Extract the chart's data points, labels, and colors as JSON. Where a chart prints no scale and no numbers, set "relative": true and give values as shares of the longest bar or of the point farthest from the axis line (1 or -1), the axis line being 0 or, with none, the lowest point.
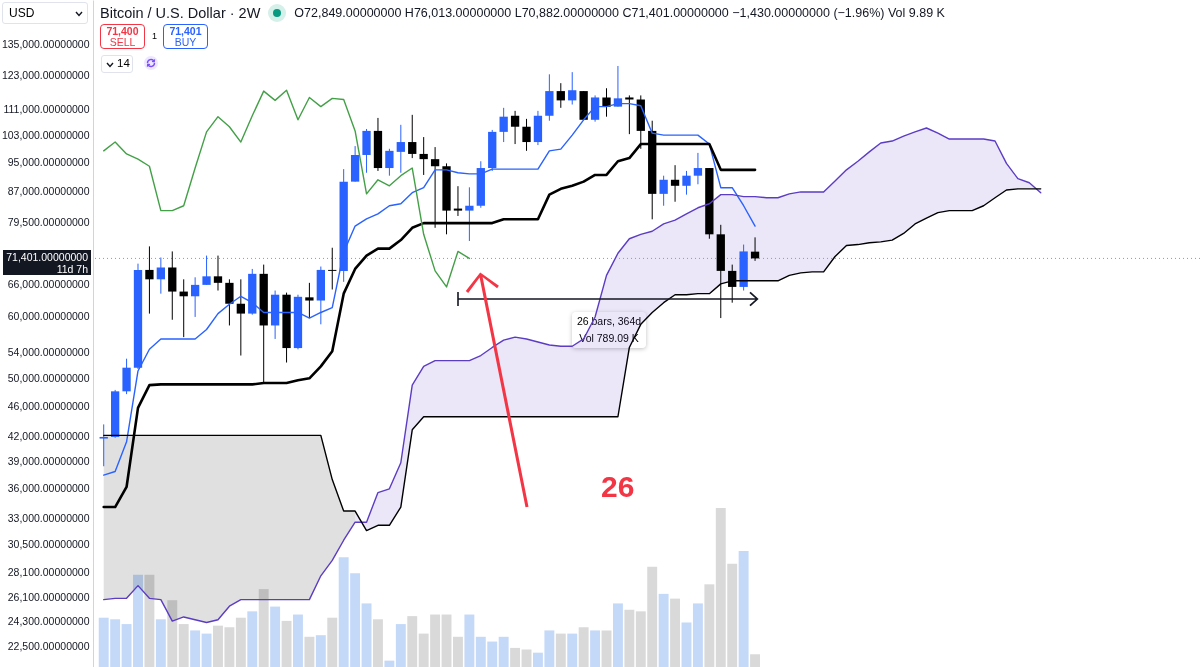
{
  "chart_data": [
    {
      "type": "candlestick",
      "title": "Bitcoin / U.S. Dollar · 2W",
      "subtitle": "O72,849.00000000 H76,013.00000000 L70,882.00000000 C71,401.00000000 −1,430.00000000 (−1.96%) Vol 9.89 K",
      "annotations": [
        "USD",
        "71,400",
        "SELL",
        "1",
        "71,401",
        "BUY",
        "14",
        "11d 7h",
        "26 bars, 364d",
        "Vol 789.09 K",
        "26"
      ],
      "categories": [
        null,
        null,
        null,
        null,
        null,
        null,
        null,
        null,
        null,
        null,
        null,
        null,
        null,
        null,
        null,
        null,
        null,
        null,
        null,
        null,
        null,
        null,
        null,
        null,
        null,
        null,
        null,
        null,
        null,
        null,
        null,
        null,
        null,
        null,
        null,
        null,
        null,
        null,
        null,
        null,
        null,
        null,
        null,
        null,
        null,
        null,
        null,
        null,
        null,
        null,
        null,
        null,
        null,
        null,
        null,
        null,
        null,
        null,
        null,
        null,
        null,
        null,
        null,
        null,
        null,
        null,
        null,
        null,
        null,
        null,
        null,
        null,
        null,
        null,
        null,
        null,
        null,
        null,
        null,
        null,
        null,
        null,
        null,
        null,
        null,
        null,
        null,
        null,
        null,
        null,
        null,
        null,
        null,
        null,
        null,
        null
      ],
      "ohlc": [
        [
          41800,
          43600,
          38500,
          42000
        ],
        [
          42000,
          48300,
          41900,
          48100
        ],
        [
          48100,
          53000,
          47700,
          51600
        ],
        [
          51600,
          70300,
          51400,
          69000
        ],
        [
          69000,
          74000,
          60600,
          67100
        ],
        [
          67100,
          71600,
          64300,
          69500
        ],
        [
          69500,
          72900,
          59500,
          64700
        ],
        [
          64700,
          67100,
          56500,
          63800
        ],
        [
          63800,
          67500,
          60000,
          66000
        ],
        [
          66000,
          72000,
          66000,
          67700
        ],
        [
          67700,
          72000,
          64900,
          66400
        ],
        [
          66400,
          67100,
          58500,
          62400
        ],
        [
          62400,
          67100,
          53500,
          60600
        ],
        [
          60600,
          69200,
          60400,
          68200
        ],
        [
          68200,
          70100,
          49300,
          58500
        ],
        [
          58500,
          64900,
          56200,
          64100
        ],
        [
          64100,
          64500,
          52400,
          54700
        ],
        [
          54700,
          64100,
          54500,
          63700
        ],
        [
          63600,
          66400,
          59800,
          63000
        ],
        [
          63000,
          69700,
          58700,
          69000
        ],
        [
          69000,
          73700,
          65100,
          68800
        ],
        [
          68800,
          93100,
          66600,
          89700
        ],
        [
          89700,
          99700,
          89700,
          97100
        ],
        [
          97100,
          104900,
          92100,
          104300
        ],
        [
          104300,
          108400,
          92600,
          93400
        ],
        [
          93400,
          98900,
          91300,
          98300
        ],
        [
          98000,
          106200,
          92100,
          100900
        ],
        [
          100900,
          109400,
          96200,
          97400
        ],
        [
          97400,
          102400,
          91500,
          95900
        ],
        [
          95900,
          99400,
          78200,
          93900
        ],
        [
          93900,
          94700,
          76700,
          82300
        ],
        [
          82800,
          88500,
          81000,
          82300
        ],
        [
          82300,
          88200,
          75200,
          83500
        ],
        [
          83500,
          95300,
          83000,
          93400
        ],
        [
          93400,
          104600,
          92600,
          104000
        ],
        [
          104000,
          111700,
          100900,
          108800
        ],
        [
          109100,
          110700,
          100300,
          105600
        ],
        [
          105600,
          108100,
          98300,
          100900
        ],
        [
          100900,
          110700,
          100000,
          109100
        ],
        [
          109100,
          123400,
          107500,
          117400
        ],
        [
          117400,
          120200,
          111700,
          114200
        ],
        [
          114200,
          124200,
          112800,
          117700
        ],
        [
          117400,
          117400,
          107800,
          107800
        ],
        [
          107800,
          115900,
          107200,
          115200
        ],
        [
          115200,
          118400,
          108800,
          112100
        ],
        [
          112100,
          126500,
          112100,
          114900
        ],
        [
          115200,
          115900,
          103300,
          114500
        ],
        [
          114500,
          115900,
          98900,
          104300
        ],
        [
          104300,
          107500,
          80200,
          86500
        ],
        [
          86500,
          91300,
          83500,
          90200
        ],
        [
          90200,
          94200,
          84500,
          88600
        ],
        [
          88600,
          92600,
          86300,
          91300
        ],
        [
          91300,
          97700,
          89000,
          93400
        ],
        [
          93400,
          93400,
          75700,
          76700
        ],
        [
          76700,
          78900,
          59800,
          68800
        ],
        [
          68800,
          70100,
          62600,
          65600
        ],
        [
          65600,
          74400,
          64900,
          72900
        ],
        [
          72849,
          76013,
          70882,
          71401
        ],
        null,
        null,
        null,
        null,
        null,
        null,
        null,
        null,
        null,
        null,
        null,
        null,
        null,
        null,
        null,
        null,
        null,
        null,
        null,
        null,
        null,
        null,
        null,
        null,
        null,
        null,
        null,
        null,
        null,
        null,
        null,
        null,
        null,
        null,
        null,
        null,
        null,
        null
      ],
      "colors": [
        "#2962ff",
        "#2962ff",
        "#2962ff",
        "#2962ff",
        "#000000",
        "#2962ff",
        "#000000",
        "#000000",
        "#2962ff",
        "#2962ff",
        "#000000",
        "#000000",
        "#000000",
        "#2962ff",
        "#000000",
        "#2962ff",
        "#000000",
        "#2962ff",
        "#000000",
        "#2962ff",
        "#000000",
        "#2962ff",
        "#2962ff",
        "#2962ff",
        "#000000",
        "#2962ff",
        "#2962ff",
        "#000000",
        "#000000",
        "#000000",
        "#000000",
        "#000000",
        "#2962ff",
        "#2962ff",
        "#2962ff",
        "#2962ff",
        "#000000",
        "#000000",
        "#2962ff",
        "#2962ff",
        "#000000",
        "#2962ff",
        "#000000",
        "#2962ff",
        "#000000",
        "#2962ff",
        "#000000",
        "#000000",
        "#000000",
        "#2962ff",
        "#000000",
        "#2962ff",
        "#2962ff",
        "#000000",
        "#000000",
        "#000000",
        "#2962ff",
        "#000000",
        null,
        null,
        null,
        null,
        null,
        null,
        null,
        null,
        null,
        null,
        null,
        null,
        null,
        null,
        null,
        null,
        null,
        null,
        null,
        null,
        null,
        null,
        null,
        null,
        null,
        null,
        null,
        null,
        null,
        null,
        null,
        null,
        null,
        null,
        null,
        null,
        null,
        null
      ],
      "series": [
        {
          "type": "line",
          "color": "#2962ff",
          "values": [
            37500,
            37900,
            41400,
            51100,
            54500,
            56200,
            56200,
            56200,
            56200,
            57800,
            60600,
            62300,
            63800,
            62600,
            60800,
            60800,
            60800,
            60800,
            59800,
            60800,
            61700,
            72700,
            78600,
            80300,
            81500,
            83500,
            84000,
            86800,
            88100,
            92900,
            92900,
            92100,
            91800,
            91800,
            93100,
            93100,
            93100,
            93100,
            93100,
            98300,
            98800,
            103000,
            107800,
            112100,
            112100,
            113100,
            113100,
            112400,
            103600,
            103000,
            103000,
            103000,
            103000,
            100300,
            88100,
            88100,
            83500,
            78600,
            null,
            null,
            null,
            null,
            null,
            null,
            null,
            null,
            null,
            null,
            null,
            null,
            null,
            null,
            null,
            null,
            null,
            null,
            null,
            null,
            null,
            null,
            null,
            null,
            null,
            null,
            null,
            null,
            null,
            null,
            null,
            null,
            null,
            null,
            null,
            null,
            null,
            null
          ]
        },
        {
          "type": "line",
          "color": "#000000",
          "values": [
            34100,
            34100,
            36200,
            45800,
            49000,
            49100,
            49100,
            49100,
            49100,
            49100,
            49100,
            49100,
            49100,
            49100,
            49300,
            49300,
            49300,
            49700,
            50000,
            51800,
            54200,
            64300,
            69200,
            72000,
            73500,
            73500,
            75400,
            78200,
            79300,
            79300,
            79300,
            79300,
            79300,
            79300,
            79300,
            80200,
            80200,
            80200,
            80200,
            86300,
            87800,
            88600,
            89700,
            91500,
            91500,
            95300,
            96200,
            100300,
            100300,
            100300,
            100300,
            100300,
            100300,
            100300,
            92900,
            92900,
            92900,
            92900,
            null,
            null,
            null,
            null,
            null,
            null,
            null,
            null,
            null,
            null,
            null,
            null,
            null,
            null,
            null,
            null,
            null,
            null,
            null,
            null,
            null,
            null,
            null,
            null,
            null,
            null,
            null,
            null,
            null,
            null,
            null,
            null,
            null,
            null,
            null,
            null,
            null,
            null
          ]
        },
        {
          "type": "line",
          "color": "#43a047",
          "values": [
            98300,
            100900,
            97400,
            95900,
            93900,
            82300,
            82300,
            83500,
            93400,
            104000,
            108800,
            105600,
            100900,
            109100,
            117400,
            114200,
            117700,
            107800,
            115200,
            112100,
            114900,
            114500,
            104300,
            86500,
            90200,
            88600,
            91300,
            93400,
            76700,
            68800,
            65600,
            72900,
            71401,
            null,
            null,
            null,
            null,
            null,
            null,
            null,
            null,
            null,
            null,
            null,
            null,
            null,
            null,
            null,
            null,
            null,
            null,
            null,
            null,
            null,
            null,
            null,
            null,
            null,
            null,
            null,
            null,
            null,
            null,
            null,
            null,
            null,
            null,
            null,
            null,
            null,
            null,
            null,
            null,
            null,
            null,
            null,
            null,
            null,
            null,
            null,
            null,
            null,
            null,
            null,
            null,
            null,
            null,
            null,
            null,
            null,
            null,
            null,
            null,
            null,
            null,
            null
          ]
        },
        {
          "type": "line",
          "color": "#5b3cc4",
          "values": [
            25900,
            26000,
            26000,
            27000,
            26000,
            25900,
            24300,
            24600,
            24400,
            24200,
            24400,
            25400,
            25900,
            25900,
            25900,
            25900,
            25900,
            25900,
            25900,
            27800,
            29100,
            30900,
            32600,
            32600,
            35600,
            36000,
            38900,
            49000,
            51800,
            52700,
            52700,
            52700,
            52700,
            53500,
            54800,
            56000,
            56500,
            56200,
            55700,
            55200,
            55000,
            55000,
            56200,
            60000,
            67900,
            72500,
            75700,
            76700,
            77400,
            79100,
            80000,
            81500,
            83000,
            84000,
            86300,
            86300,
            85800,
            85800,
            85500,
            85500,
            86500,
            87000,
            87000,
            87000,
            89900,
            92900,
            95300,
            98000,
            100600,
            101200,
            102700,
            104000,
            105200,
            103600,
            101800,
            101800,
            101800,
            101800,
            101200,
            94700,
            90500,
            89400,
            86800,
            null,
            null,
            null,
            null,
            null,
            null,
            null,
            null,
            null,
            null,
            null,
            null,
            null
          ],
          "lower": [
            null,
            null,
            null,
            null,
            null,
            null,
            null,
            null,
            null,
            null,
            null,
            null,
            null,
            null,
            null,
            null,
            null,
            null,
            null,
            null,
            null,
            null,
            33700,
            31800,
            32300,
            32300,
            34100,
            42900,
            44600,
            44600,
            44600,
            44600,
            44600,
            44600,
            44600,
            44600,
            44600,
            44600,
            44600,
            44600,
            44600,
            44600,
            44600,
            44600,
            44600,
            44600,
            54800,
            58700,
            60800,
            62600,
            64100,
            64100,
            64300,
            64300,
            66200,
            66800,
            66800,
            66800,
            66800,
            66800,
            67900,
            68400,
            68600,
            68600,
            71800,
            74200,
            74400,
            74800,
            75000,
            75400,
            76900,
            79100,
            80500,
            81800,
            82300,
            82300,
            82300,
            83500,
            85500,
            87500,
            87800,
            87800,
            87800,
            null,
            null,
            null,
            null,
            null,
            null,
            null,
            null,
            null,
            null,
            null,
            null,
            null
          ],
          "upper": [
            null,
            null,
            null,
            null,
            null,
            null,
            null,
            null,
            null,
            null,
            null,
            null,
            null,
            null,
            null,
            null,
            null,
            null,
            null,
            null,
            null,
            null,
            32600,
            32600,
            35600,
            36000,
            38900,
            49000,
            51800,
            52700,
            52700,
            52700,
            52700,
            53500,
            54800,
            56000,
            56500,
            56200,
            55700,
            55200,
            55000,
            55000,
            56200,
            60000,
            67900,
            72500,
            75700,
            76700,
            77400,
            79100,
            80000,
            81500,
            83000,
            84000,
            86300,
            86300,
            85800,
            85800,
            85500,
            85500,
            86500,
            87000,
            87000,
            87000,
            89900,
            92900,
            95300,
            98000,
            100600,
            101200,
            102700,
            104000,
            105200,
            103600,
            101800,
            101800,
            101800,
            101800,
            101200,
            94700,
            90500,
            89400,
            86800,
            null,
            null,
            null,
            null,
            null,
            null,
            null,
            null,
            null,
            null,
            null,
            null,
            null
          ]
        },
        {
          "type": "line",
          "color": "#000000",
          "values": [
            42200,
            42200,
            42200,
            42200,
            42200,
            42200,
            42200,
            42200,
            42200,
            42200,
            42200,
            42200,
            42200,
            42200,
            42200,
            42200,
            42200,
            42200,
            42200,
            42200,
            37000,
            33700,
            33700,
            31800,
            32300,
            32300,
            34100,
            42900,
            44600,
            44600,
            44600,
            44600,
            44600,
            44600,
            44600,
            44600,
            44600,
            44600,
            44600,
            44600,
            44600,
            44600,
            44600,
            44600,
            44600,
            44600,
            54800,
            58700,
            60800,
            62600,
            64100,
            64100,
            64300,
            64300,
            66200,
            66800,
            66800,
            66800,
            66800,
            66800,
            67900,
            68400,
            68600,
            68600,
            71800,
            74200,
            74400,
            74800,
            75000,
            75400,
            76900,
            79100,
            80500,
            81800,
            82300,
            82300,
            82300,
            83500,
            85500,
            87500,
            87800,
            87800,
            87800,
            null,
            null,
            null,
            null,
            null,
            null,
            null,
            null,
            null,
            null,
            null,
            null,
            null
          ],
          "lower": [
            25900,
            26000,
            26000,
            27000,
            26000,
            25900,
            24300,
            24600,
            24400,
            24200,
            24400,
            25400,
            25900,
            25900,
            25900,
            25900,
            25900,
            25900,
            25900,
            27800,
            29100,
            30900,
            32600,
            null,
            null,
            null,
            null,
            null,
            null,
            null,
            null,
            null,
            null,
            null,
            null,
            null,
            null,
            null,
            null,
            null,
            null,
            null,
            null,
            null,
            null,
            null,
            null,
            null,
            null,
            null,
            null,
            null,
            null,
            null,
            null,
            null,
            null,
            null,
            null,
            null,
            null,
            null,
            null,
            null,
            null,
            null,
            null,
            null,
            null,
            null,
            null,
            null,
            null,
            null,
            null,
            null,
            null,
            null,
            null,
            null,
            null,
            null,
            null,
            null,
            null,
            null,
            null,
            null,
            null,
            null,
            null,
            null,
            null,
            null,
            null,
            null
          ],
          "upper": [
            42200,
            42200,
            42200,
            42200,
            42200,
            42200,
            42200,
            42200,
            42200,
            42200,
            42200,
            42200,
            42200,
            42200,
            42200,
            42200,
            42200,
            42200,
            42200,
            42200,
            37000,
            33700,
            33700,
            null,
            null,
            null,
            null,
            null,
            null,
            null,
            null,
            null,
            null,
            null,
            null,
            null,
            null,
            null,
            null,
            null,
            null,
            null,
            null,
            null,
            null,
            null,
            null,
            null,
            null,
            null,
            null,
            null,
            null,
            null,
            null,
            null,
            null,
            null,
            null,
            null,
            null,
            null,
            null,
            null,
            null,
            null,
            null,
            null,
            null,
            null,
            null,
            null,
            null,
            null,
            null,
            null,
            null,
            null,
            null,
            null,
            null,
            null,
            null,
            null,
            null,
            null,
            null,
            null,
            null,
            null,
            null,
            null,
            null,
            null,
            null,
            null
          ]
        }
      ],
      "ylim": [
        21200,
        153900
      ],
      "log": true,
      "tick_labels": "y",
      "yticks": [
        {
          "value": 135000,
          "label": "135,000.00000000"
        },
        {
          "value": 123000,
          "label": "123,000.00000000"
        },
        {
          "value": 111000,
          "label": "111,000.00000000"
        },
        {
          "value": 103000,
          "label": "103,000.00000000"
        },
        {
          "value": 95000,
          "label": "95,000.00000000"
        },
        {
          "value": 87000,
          "label": "87,000.00000000"
        },
        {
          "value": 79500,
          "label": "79,500.00000000"
        },
        {
          "value": 66000,
          "label": "66,000.00000000"
        },
        {
          "value": 60000,
          "label": "60,000.00000000"
        },
        {
          "value": 54000,
          "label": "54,000.00000000"
        },
        {
          "value": 50000,
          "label": "50,000.00000000"
        },
        {
          "value": 46000,
          "label": "46,000.00000000"
        },
        {
          "value": 42000,
          "label": "42,000.00000000"
        },
        {
          "value": 39000,
          "label": "39,000.00000000"
        },
        {
          "value": 36000,
          "label": "36,000.00000000"
        },
        {
          "value": 33000,
          "label": "33,000.00000000"
        },
        {
          "value": 30500,
          "label": "30,500.00000000"
        },
        {
          "value": 28100,
          "label": "28,100.00000000"
        },
        {
          "value": 26100,
          "label": "26,100.00000000"
        },
        {
          "value": 24300,
          "label": "24,300.00000000"
        },
        {
          "value": 22500,
          "label": "22,500.00000000"
        }
      ],
      "ref_lines": [
        {
          "axis": "y",
          "value": 71401,
          "label": "71,401.00000000",
          "color": "#9598a1",
          "line_style": "dotted"
        }
      ]
    },
    {
      "type": "bar",
      "relative": true,
      "tick_labels": false,
      "categories": [
        null,
        null,
        null,
        null,
        null,
        null,
        null,
        null,
        null,
        null,
        null,
        null,
        null,
        null,
        null,
        null,
        null,
        null,
        null,
        null,
        null,
        null,
        null,
        null,
        null,
        null,
        null,
        null,
        null,
        null,
        null,
        null,
        null,
        null,
        null,
        null,
        null,
        null,
        null,
        null,
        null,
        null,
        null,
        null,
        null,
        null,
        null,
        null,
        null,
        null,
        null,
        null,
        null,
        null,
        null,
        null,
        null,
        null,
        null,
        null,
        null,
        null,
        null,
        null,
        null,
        null,
        null,
        null,
        null,
        null,
        null,
        null,
        null,
        null,
        null,
        null,
        null,
        null,
        null,
        null,
        null,
        null,
        null,
        null,
        null,
        null,
        null,
        null,
        null,
        null,
        null,
        null,
        null,
        null,
        null,
        null
      ],
      "values": [
        0.31,
        0.3,
        0.27,
        0.58,
        0.58,
        0.3,
        0.42,
        0.27,
        0.23,
        0.21,
        0.26,
        0.25,
        0.31,
        0.35,
        0.49,
        0.38,
        0.29,
        0.33,
        0.19,
        0.2,
        0.31,
        0.69,
        0.59,
        0.4,
        0.3,
        0.04,
        0.27,
        0.32,
        0.21,
        0.33,
        0.33,
        0.19,
        0.33,
        0.19,
        0.16,
        0.19,
        0.12,
        0.11,
        0.09,
        0.23,
        0.21,
        0.21,
        0.25,
        0.23,
        0.23,
        0.4,
        0.36,
        0.35,
        0.63,
        0.46,
        0.43,
        0.28,
        0.4,
        0.52,
        1,
        0.65,
        0.73,
        0.08,
        null,
        null,
        null,
        null,
        null,
        null,
        null,
        null,
        null,
        null,
        null,
        null,
        null,
        null,
        null,
        null,
        null,
        null,
        null,
        null,
        null,
        null,
        null,
        null,
        null,
        null,
        null,
        null,
        null,
        null,
        null,
        null,
        null,
        null,
        null,
        null,
        null,
        null
      ],
      "colors": [
        "#c4d9f8",
        "#c4d9f8",
        "#c4d9f8",
        "#c4d9f8",
        "#d9d9d9",
        "#c4d9f8",
        "#d9d9d9",
        "#d9d9d9",
        "#c4d9f8",
        "#c4d9f8",
        "#d9d9d9",
        "#d9d9d9",
        "#d9d9d9",
        "#c4d9f8",
        "#d9d9d9",
        "#c4d9f8",
        "#d9d9d9",
        "#c4d9f8",
        "#d9d9d9",
        "#c4d9f8",
        "#d9d9d9",
        "#c4d9f8",
        "#c4d9f8",
        "#c4d9f8",
        "#d9d9d9",
        "#c4d9f8",
        "#c4d9f8",
        "#d9d9d9",
        "#d9d9d9",
        "#d9d9d9",
        "#d9d9d9",
        "#d9d9d9",
        "#c4d9f8",
        "#c4d9f8",
        "#c4d9f8",
        "#c4d9f8",
        "#d9d9d9",
        "#d9d9d9",
        "#c4d9f8",
        "#c4d9f8",
        "#d9d9d9",
        "#c4d9f8",
        "#d9d9d9",
        "#c4d9f8",
        "#d9d9d9",
        "#c4d9f8",
        "#d9d9d9",
        "#d9d9d9",
        "#d9d9d9",
        "#c4d9f8",
        "#d9d9d9",
        "#c4d9f8",
        "#c4d9f8",
        "#d9d9d9",
        "#d9d9d9",
        "#d9d9d9",
        "#c4d9f8",
        "#d9d9d9",
        null,
        null,
        null,
        null,
        null,
        null,
        null,
        null,
        null,
        null,
        null,
        null,
        null,
        null,
        null,
        null,
        null,
        null,
        null,
        null,
        null,
        null,
        null,
        null,
        null,
        null,
        null,
        null,
        null,
        null,
        null,
        null,
        null,
        null,
        null,
        null,
        null,
        null
      ]
    }
  ]
}
